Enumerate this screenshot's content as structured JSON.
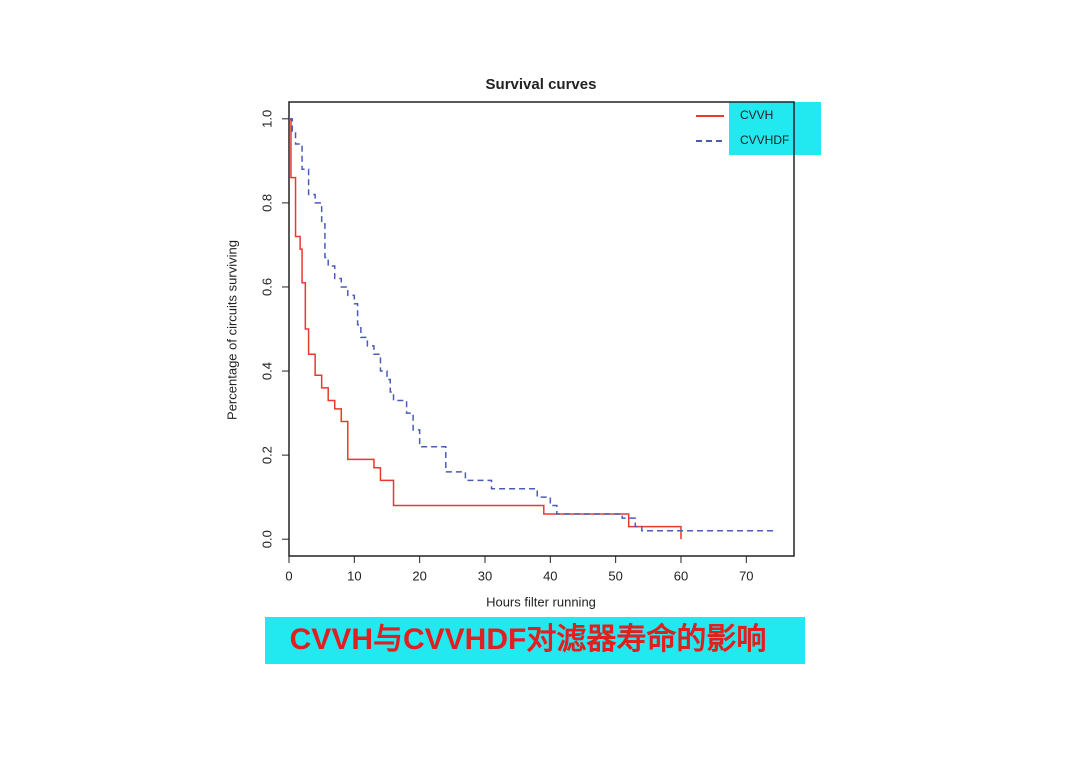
{
  "chart_data": {
    "type": "step",
    "title": "Survival curves",
    "x_label": "Hours filter running",
    "y_label": "Percentage of circuits surviving",
    "xlim": [
      0,
      77.3
    ],
    "ylim": [
      -0.04,
      1.04
    ],
    "xticks": [
      0,
      10,
      20,
      30,
      40,
      50,
      60,
      70
    ],
    "yticks": [
      {
        "value": 0,
        "label": "0.0"
      },
      0.2,
      0.4,
      0.6,
      0.8,
      {
        "value": 1,
        "label": "1.0"
      }
    ],
    "legend": "top-right",
    "series": [
      {
        "name": "CVVH",
        "color": "#e8392f",
        "linestyle": "solid",
        "x": [
          0,
          0.3,
          1,
          1.7,
          2,
          2.5,
          3,
          4,
          5,
          6,
          7,
          8,
          9,
          13,
          14,
          16,
          39,
          52,
          60
        ],
        "values": [
          1.0,
          0.86,
          0.72,
          0.69,
          0.61,
          0.5,
          0.44,
          0.39,
          0.36,
          0.33,
          0.31,
          0.28,
          0.19,
          0.17,
          0.14,
          0.08,
          0.06,
          0.03,
          0.0
        ]
      },
      {
        "name": "CVVHDF",
        "color": "#4a5cb8",
        "linestyle": "dashed",
        "x": [
          0,
          0.5,
          1,
          2,
          3,
          4,
          5,
          5.5,
          6,
          7,
          8,
          9,
          10,
          10.5,
          11,
          12,
          13,
          14,
          15,
          15.5,
          16,
          18,
          19,
          20,
          24,
          27,
          31,
          38,
          40,
          41,
          51,
          53,
          54,
          74.5
        ],
        "values": [
          1.0,
          0.97,
          0.94,
          0.88,
          0.82,
          0.8,
          0.75,
          0.67,
          0.65,
          0.62,
          0.6,
          0.58,
          0.56,
          0.51,
          0.48,
          0.46,
          0.44,
          0.4,
          0.38,
          0.35,
          0.33,
          0.3,
          0.26,
          0.22,
          0.16,
          0.14,
          0.12,
          0.1,
          0.08,
          0.06,
          0.05,
          0.03,
          0.02,
          0.02
        ]
      }
    ]
  },
  "caption": "CVVH与CVVHDF对滤器寿命的影响"
}
